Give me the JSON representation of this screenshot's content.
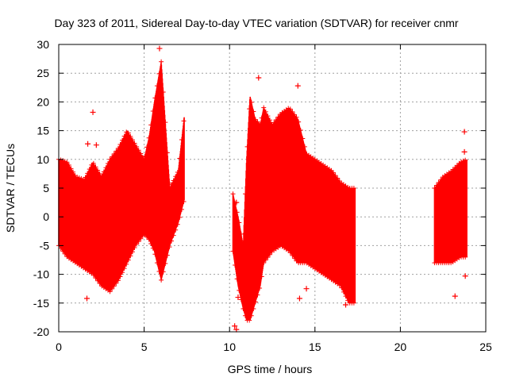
{
  "chart_data": {
    "type": "scatter",
    "title": "Day 323 of 2011, Sidereal Day-to-day VTEC variation (SDTVAR) for receiver cnmr",
    "xlabel": "GPS time / hours",
    "ylabel": "SDTVAR / TECUs",
    "xlim": [
      0,
      25
    ],
    "ylim": [
      -20,
      30
    ],
    "x_ticks": [
      0,
      5,
      10,
      15,
      20,
      25
    ],
    "y_ticks": [
      -20,
      -15,
      -10,
      -5,
      0,
      5,
      10,
      15,
      20,
      25,
      30
    ],
    "grid": true,
    "marker": "+",
    "color": "#ff0000",
    "series": [
      {
        "name": "SDTVAR",
        "envelope_x": [
          0.0,
          0.25,
          0.5,
          1.0,
          1.5,
          2.0,
          2.5,
          3.0,
          3.5,
          4.0,
          4.5,
          5.0,
          5.3,
          5.6,
          6.0,
          6.5,
          7.0,
          7.35
        ],
        "envelope_low": [
          -5,
          -6,
          -7,
          -8,
          -9,
          -10,
          -12,
          -13,
          -11,
          -8,
          -5,
          -3,
          -4,
          -6,
          -11,
          -5,
          -1,
          3
        ],
        "envelope_high": [
          10,
          9.8,
          9.5,
          7,
          6.5,
          9.5,
          7,
          10,
          12,
          15,
          12.5,
          10,
          14,
          20,
          27,
          5,
          8,
          17.5
        ],
        "envelope2_x": [
          10.2,
          10.5,
          10.8,
          11.0,
          11.2,
          11.5,
          11.8,
          12.0,
          12.5,
          13.0,
          13.5,
          14.0,
          14.5,
          15.0,
          15.5,
          16.0,
          16.5,
          17.0,
          17.35
        ],
        "envelope2_low": [
          -6,
          -12,
          -16,
          -18,
          -18,
          -15,
          -12,
          -8,
          -6,
          -5,
          -6,
          -8,
          -8,
          -9,
          -10,
          -11,
          -12,
          -15,
          -15
        ],
        "envelope2_high": [
          4,
          0,
          -5,
          10,
          21,
          17,
          16,
          19,
          16,
          18,
          19,
          17,
          11,
          10,
          9,
          8,
          6,
          5,
          5
        ],
        "envelope3_x": [
          22.0,
          22.5,
          23.0,
          23.5,
          23.9
        ],
        "envelope3_low": [
          -8,
          -8,
          -8,
          -7,
          -7
        ],
        "envelope3_high": [
          5,
          7,
          8,
          9.5,
          10
        ],
        "outliers": [
          {
            "x": 2.0,
            "y": 18.2
          },
          {
            "x": 2.2,
            "y": 12.5
          },
          {
            "x": 1.7,
            "y": 12.7
          },
          {
            "x": 1.65,
            "y": -14.2
          },
          {
            "x": 5.9,
            "y": 29.3
          },
          {
            "x": 10.3,
            "y": -19.0
          },
          {
            "x": 10.4,
            "y": -19.6
          },
          {
            "x": 10.4,
            "y": 2.5
          },
          {
            "x": 10.5,
            "y": -14.0
          },
          {
            "x": 11.7,
            "y": 24.2
          },
          {
            "x": 14.0,
            "y": 22.8
          },
          {
            "x": 14.1,
            "y": -14.2
          },
          {
            "x": 14.5,
            "y": -12.5
          },
          {
            "x": 16.8,
            "y": -15.3
          },
          {
            "x": 23.2,
            "y": -13.8
          },
          {
            "x": 23.75,
            "y": 14.8
          },
          {
            "x": 23.8,
            "y": -10.3
          },
          {
            "x": 23.75,
            "y": 11.3
          }
        ]
      }
    ]
  }
}
